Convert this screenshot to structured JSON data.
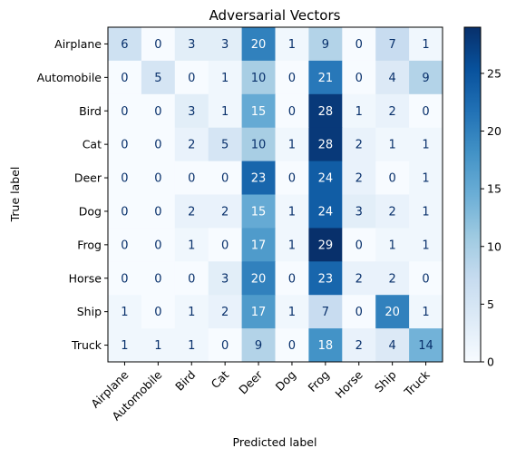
{
  "chart_data": {
    "type": "heatmap",
    "title": "Adversarial Vectors",
    "xlabel": "Predicted label",
    "ylabel": "True label",
    "x_categories": [
      "Airplane",
      "Automobile",
      "Bird",
      "Cat",
      "Deer",
      "Dog",
      "Frog",
      "Horse",
      "Ship",
      "Truck"
    ],
    "y_categories": [
      "Airplane",
      "Automobile",
      "Bird",
      "Cat",
      "Deer",
      "Dog",
      "Frog",
      "Horse",
      "Ship",
      "Truck"
    ],
    "values": [
      [
        6,
        0,
        3,
        3,
        20,
        1,
        9,
        0,
        7,
        1
      ],
      [
        0,
        5,
        0,
        1,
        10,
        0,
        21,
        0,
        4,
        9
      ],
      [
        0,
        0,
        3,
        1,
        15,
        0,
        28,
        1,
        2,
        0
      ],
      [
        0,
        0,
        2,
        5,
        10,
        1,
        28,
        2,
        1,
        1
      ],
      [
        0,
        0,
        0,
        0,
        23,
        0,
        24,
        2,
        0,
        1
      ],
      [
        0,
        0,
        2,
        2,
        15,
        1,
        24,
        3,
        2,
        1
      ],
      [
        0,
        0,
        1,
        0,
        17,
        1,
        29,
        0,
        1,
        1
      ],
      [
        0,
        0,
        0,
        3,
        20,
        0,
        23,
        2,
        2,
        0
      ],
      [
        1,
        0,
        1,
        2,
        17,
        1,
        7,
        0,
        20,
        1
      ],
      [
        1,
        1,
        1,
        0,
        9,
        0,
        18,
        2,
        4,
        14
      ]
    ],
    "colormap": "Blues",
    "vmin": 0,
    "vmax": 29,
    "colorbar_ticks": [
      0,
      5,
      10,
      15,
      20,
      25
    ],
    "grid": false
  }
}
